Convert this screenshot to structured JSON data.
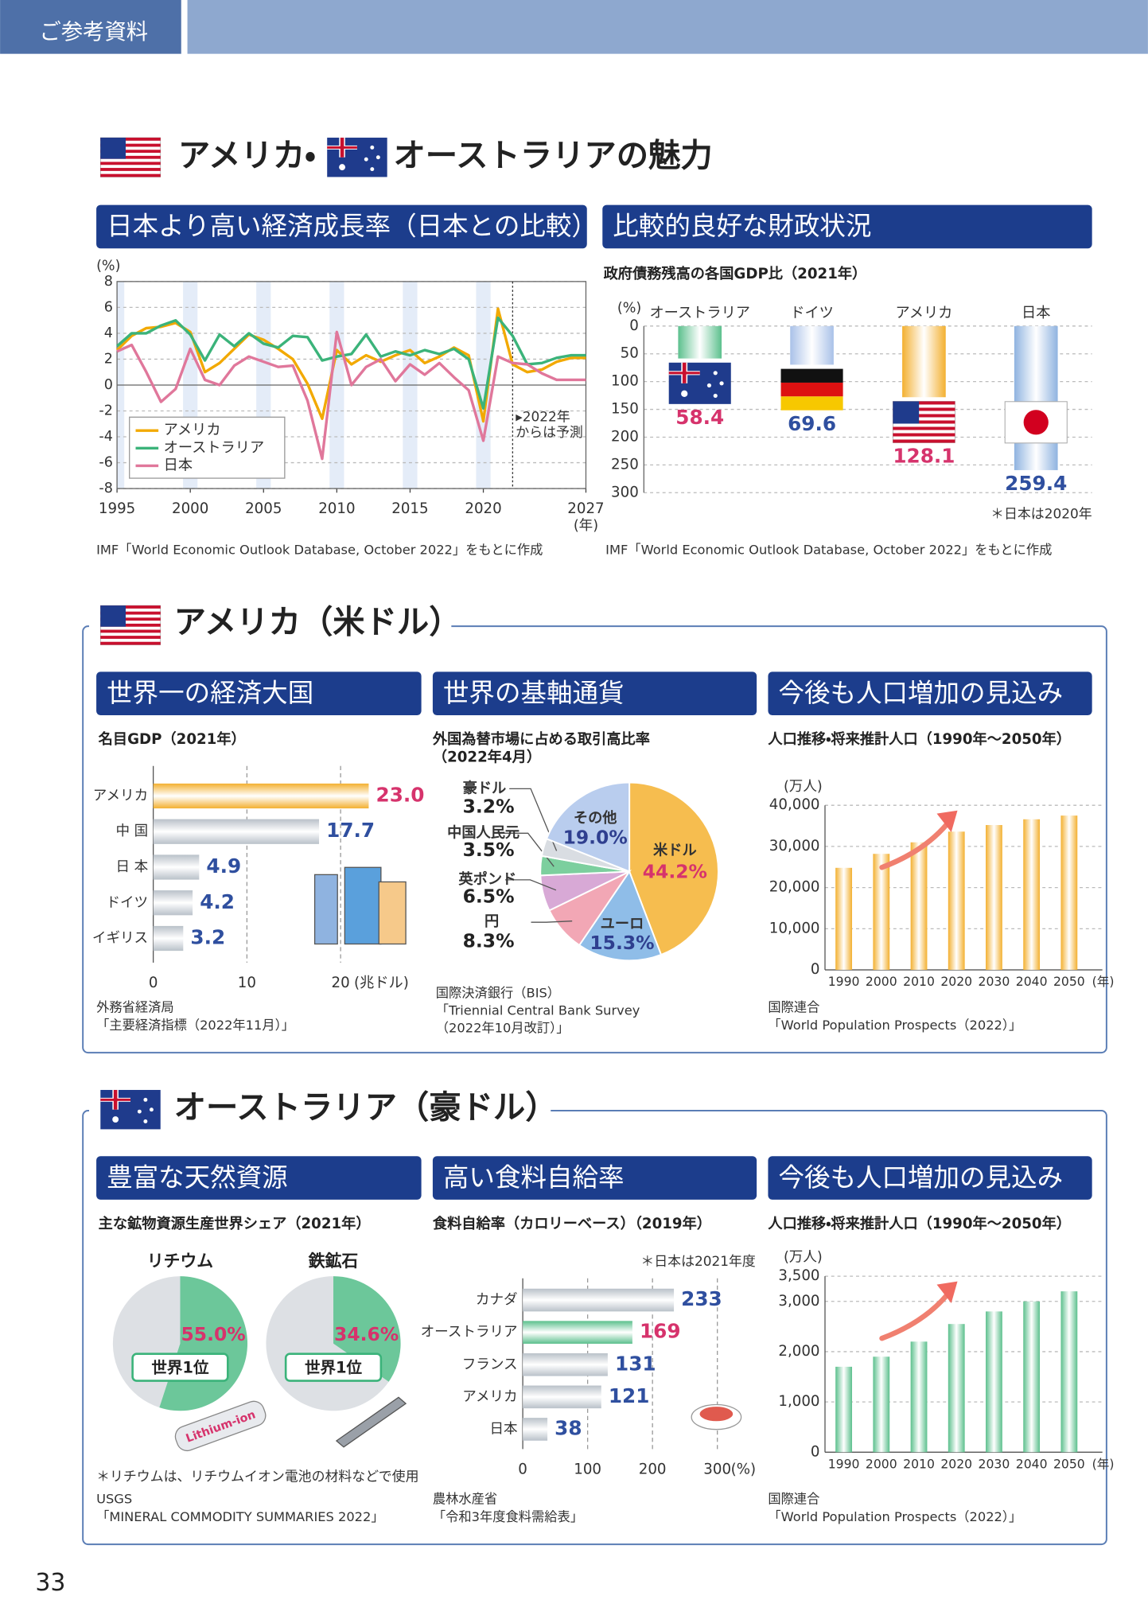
{
  "header": "ご参考資料",
  "title": [
    "アメリカ・",
    "オーストラリアの魅力"
  ],
  "sections": [
    "アメリカ（米ドル）",
    "オーストラリア（豪ドル）"
  ],
  "page_number": 33,
  "chart_data": [
    {
      "type": "line",
      "title": "日本より高い経済成長率（日本との比較）",
      "ylabel": "(%)",
      "xlabel": "(年)",
      "x": [
        1995,
        1996,
        1997,
        1998,
        1999,
        2000,
        2001,
        2002,
        2003,
        2004,
        2005,
        2006,
        2007,
        2008,
        2009,
        2010,
        2011,
        2012,
        2013,
        2014,
        2015,
        2016,
        2017,
        2018,
        2019,
        2020,
        2021,
        2022,
        2023,
        2024,
        2025,
        2026,
        2027
      ],
      "series": [
        {
          "name": "アメリカ",
          "color": "#f2a900",
          "values": [
            2.7,
            3.8,
            4.4,
            4.5,
            4.8,
            4.1,
            1.0,
            1.7,
            2.8,
            3.9,
            3.5,
            2.8,
            2.0,
            0.1,
            -2.6,
            2.7,
            1.6,
            2.3,
            1.8,
            2.3,
            2.7,
            1.7,
            2.2,
            2.9,
            2.3,
            -2.8,
            5.9,
            1.6,
            1.0,
            1.2,
            1.8,
            2.1,
            2.1
          ]
        },
        {
          "name": "オーストラリア",
          "color": "#3bb37a",
          "values": [
            3.0,
            4.0,
            4.0,
            4.6,
            5.0,
            3.9,
            1.9,
            3.9,
            3.0,
            4.0,
            3.2,
            2.9,
            3.8,
            3.7,
            1.9,
            2.2,
            2.4,
            3.9,
            2.2,
            2.6,
            2.3,
            2.7,
            2.4,
            2.8,
            2.0,
            -1.8,
            5.2,
            3.8,
            1.6,
            1.7,
            2.1,
            2.3,
            2.3
          ]
        },
        {
          "name": "日本",
          "color": "#e0779b",
          "values": [
            2.6,
            3.1,
            1.0,
            -1.3,
            -0.3,
            2.8,
            0.4,
            0.0,
            1.5,
            2.2,
            1.8,
            1.4,
            1.5,
            -1.2,
            -5.7,
            4.1,
            0.0,
            1.4,
            2.0,
            0.3,
            1.6,
            0.8,
            1.7,
            0.6,
            -0.4,
            -4.3,
            2.2,
            1.7,
            1.6,
            0.9,
            0.4,
            0.4,
            0.4
          ]
        }
      ],
      "xlim": [
        1995,
        2027
      ],
      "xticks": [
        1995,
        2000,
        2005,
        2010,
        2015,
        2020,
        2027
      ],
      "ylim": [
        -8,
        8
      ],
      "yticks": [
        -8,
        -6,
        -4,
        -2,
        0,
        2,
        4,
        6,
        8
      ],
      "grid": true,
      "forecast_from": 2022,
      "annotation": [
        "▸2022年",
        "からは予測"
      ],
      "legend": "lower-left",
      "source": [
        "IMF「World Economic Outlook Database, October 2022」をもとに作成"
      ]
    },
    {
      "type": "bar",
      "title": "比較的良好な財政状況",
      "subtitle": "政府債務残高の各国GDP比（2021年）",
      "ylabel": "(%)",
      "categories": [
        "オーストラリア",
        "ドイツ",
        "アメリカ",
        "日本"
      ],
      "values": [
        58.4,
        69.6,
        128.1,
        259.4
      ],
      "colors": [
        "#5cc08d",
        "#a9c1e8",
        "#f3b030",
        "#8fb3e0"
      ],
      "label_colors": [
        "#d6336c",
        "#2f4f9f",
        "#d6336c",
        "#2f4f9f"
      ],
      "ylim": [
        0,
        300
      ],
      "yticks": [
        0,
        50,
        100,
        150,
        200,
        250,
        300
      ],
      "inverted": true,
      "grid": true,
      "note": "＊日本は2020年",
      "source": [
        "IMF「World Economic Outlook Database, October 2022」をもとに作成"
      ]
    },
    {
      "type": "hbar",
      "title": "世界一の経済大国",
      "subtitle": "名目GDP（2021年）",
      "categories": [
        "アメリカ",
        "中 国",
        "日 本",
        "ドイツ",
        "イギリス"
      ],
      "values": [
        23.0,
        17.7,
        4.9,
        4.2,
        3.2
      ],
      "value_labels": [
        "23.0",
        "17.7",
        "4.9",
        "4.2",
        "3.2"
      ],
      "colors": [
        "#f3b030",
        "#b9c1c9",
        "#b9c1c9",
        "#b9c1c9",
        "#b9c1c9"
      ],
      "label_colors": [
        "#d6336c",
        "#2f4f9f",
        "#2f4f9f",
        "#2f4f9f",
        "#2f4f9f"
      ],
      "xlim": [
        0,
        20
      ],
      "xticks": [
        0,
        10,
        20
      ],
      "xlabel": "(兆ドル)",
      "grid": true,
      "source": [
        "外務省経済局",
        "「主要経済指標（2022年11月）」"
      ]
    },
    {
      "type": "pie",
      "title": "世界の基軸通貨",
      "subtitle": [
        "外国為替市場に占める取引高比率",
        "（2022年4月）"
      ],
      "categories": [
        "米ドル",
        "ユーロ",
        "円",
        "英ポンド",
        "中国人民元",
        "豪ドル",
        "その他"
      ],
      "values": [
        44.2,
        15.3,
        8.3,
        6.5,
        3.5,
        3.2,
        19.0
      ],
      "value_labels": [
        "44.2%",
        "15.3%",
        "8.3%",
        "6.5%",
        "3.5%",
        "3.2%",
        "19.0%"
      ],
      "colors": [
        "#f6bd4f",
        "#8fbde8",
        "#f2a7b5",
        "#d8a9d6",
        "#7ccf9e",
        "#d9dde2",
        "#b9cdee"
      ],
      "source": [
        "国際決済銀行（BIS）",
        "「Triennial Central Bank Survey",
        "（2022年10月改訂）」"
      ]
    },
    {
      "type": "bar",
      "title": "今後も人口増加の見込み",
      "subtitle": "人口推移・将来推計人口（1990年～2050年）",
      "ylabel": "(万人)",
      "xlabel": "(年)",
      "categories": [
        "1990",
        "2000",
        "2010",
        "2020",
        "2030",
        "2040",
        "2050"
      ],
      "values": [
        24800,
        28200,
        31000,
        33600,
        35200,
        36600,
        37500
      ],
      "color": "#f3b030",
      "ylim": [
        0,
        40000
      ],
      "yticks": [
        0,
        {
          "value": 10000,
          "label": "10,000"
        },
        {
          "value": 20000,
          "label": "20,000"
        },
        {
          "value": 30000,
          "label": "30,000"
        },
        {
          "value": 40000,
          "label": "40,000"
        }
      ],
      "grid": true,
      "source": [
        "国際連合",
        "「World Population Prospects（2022）」"
      ]
    },
    {
      "type": "pies",
      "title": "豊富な天然資源",
      "subtitle": "主な鉱物資源生産世界シェア（2021年）",
      "categories": [
        "リチウム",
        "鉄鉱石"
      ],
      "values": [
        55.0,
        34.6
      ],
      "value_labels": [
        "55.0%",
        "34.6%"
      ],
      "color": "#6cc79a",
      "rest_color": "#dde0e4",
      "badge": "世界1位",
      "illustration_text": "Lithium-ion",
      "note": "＊リチウムは、リチウムイオン電池の材料などで使用",
      "source": [
        "USGS",
        "「MINERAL COMMODITY SUMMARIES 2022」"
      ]
    },
    {
      "type": "hbar",
      "title": "高い食料自給率",
      "subtitle": "食料自給率（カロリーベース）（2019年）",
      "categories": [
        "カナダ",
        "オーストラリア",
        "フランス",
        "アメリカ",
        "日本"
      ],
      "values": [
        233,
        169,
        131,
        121,
        38
      ],
      "colors": [
        "#b9c1c9",
        "#5cc08d",
        "#b9c1c9",
        "#b9c1c9",
        "#b9c1c9"
      ],
      "label_colors": [
        "#2f4f9f",
        "#d6336c",
        "#2f4f9f",
        "#2f4f9f",
        "#2f4f9f"
      ],
      "xlim": [
        0,
        300
      ],
      "xticks": [
        0,
        100,
        200,
        300
      ],
      "xlabel": "(%)",
      "grid": true,
      "note": "＊日本は2021年度",
      "source": [
        "農林水産省",
        "「令和3年度食料需給表」"
      ]
    },
    {
      "type": "bar",
      "title": "今後も人口増加の見込み",
      "subtitle": "人口推移・将来推計人口（1990年～2050年）",
      "ylabel": "(万人)",
      "xlabel": "(年)",
      "categories": [
        "1990",
        "2000",
        "2010",
        "2020",
        "2030",
        "2040",
        "2050"
      ],
      "values": [
        1700,
        1900,
        2200,
        2550,
        2800,
        3000,
        3200
      ],
      "color": "#5cc08d",
      "ylim": [
        0,
        3500
      ],
      "yticks": [
        0,
        {
          "value": 1000,
          "label": "1,000"
        },
        {
          "value": 2000,
          "label": "2,000"
        },
        {
          "value": 3000,
          "label": "3,000"
        },
        {
          "value": 3500,
          "label": "3,500"
        }
      ],
      "grid": true,
      "source": [
        "国際連合",
        "「World Population Prospects（2022）」"
      ]
    }
  ]
}
